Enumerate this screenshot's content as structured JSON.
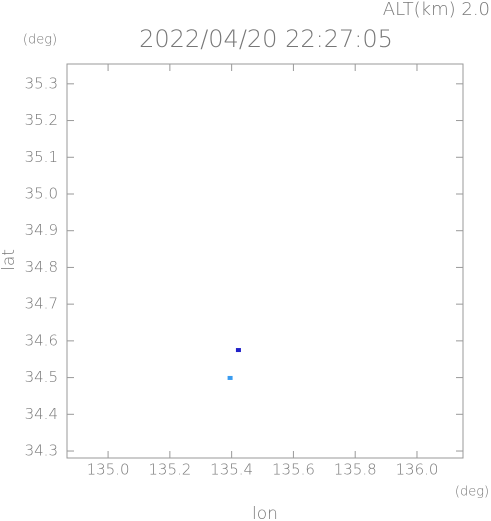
{
  "chart_data": {
    "type": "scatter",
    "title": "2022/04/20 22:27:05",
    "annotation": "ALT(km) 2.0",
    "y_unit": "(deg)",
    "x_unit": "(deg)",
    "xlabel": "lon",
    "ylabel": "lat",
    "x": [
      135.422,
      135.395
    ],
    "y": [
      34.575,
      34.499
    ],
    "colors": [
      "#2020c8",
      "#3a9cf0"
    ],
    "xlim": [
      134.867,
      136.149
    ],
    "ylim": [
      34.281,
      35.354
    ],
    "xticks": [
      {
        "value": 135.0,
        "label": "135.0"
      },
      135.2,
      135.4,
      135.6,
      135.8,
      {
        "value": 136.0,
        "label": "136.0"
      }
    ],
    "yticks": [
      34.3,
      34.4,
      34.5,
      34.6,
      34.7,
      34.8,
      34.9,
      {
        "value": 35.0,
        "label": "35.0"
      },
      35.1,
      35.2,
      35.3
    ]
  }
}
